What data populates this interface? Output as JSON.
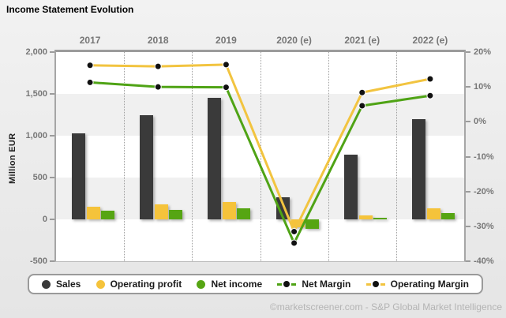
{
  "title": "Income Statement Evolution",
  "footer": "©marketscreener.com - S&P Global Market Intelligence",
  "y_axis_left": {
    "label": "Million EUR",
    "ticks": [
      "2,000",
      "1,500",
      "1,000",
      "500",
      "0",
      "-500"
    ]
  },
  "y_axis_right": {
    "ticks": [
      "20%",
      "10%",
      "0%",
      "-10%",
      "-20%",
      "-30%",
      "-40%"
    ]
  },
  "chart_data": {
    "type": "bar+line combo (dual axis)",
    "categories": [
      "2017",
      "2018",
      "2019",
      "2020 (e)",
      "2021 (e)",
      "2022 (e)"
    ],
    "left_axis": {
      "title": "Million EUR",
      "min": -500,
      "max": 2000,
      "step": 500
    },
    "right_axis": {
      "title": "margin %",
      "min": -40,
      "max": 20,
      "step": 10
    },
    "bar_series": [
      {
        "name": "Sales",
        "color": "#3a3a3a",
        "values": [
          1030,
          1245,
          1450,
          265,
          770,
          1195
        ]
      },
      {
        "name": "Operating profit",
        "color": "#f5c33b",
        "values": [
          155,
          180,
          210,
          -95,
          45,
          130
        ]
      },
      {
        "name": "Net income",
        "color": "#56a513",
        "values": [
          105,
          110,
          130,
          -110,
          20,
          75
        ]
      }
    ],
    "line_series": [
      {
        "name": "Net Margin",
        "color": "#4fa315",
        "marker_color": "#111111",
        "values_pct": [
          11.3,
          10.0,
          9.9,
          -34.8,
          4.6,
          7.5
        ]
      },
      {
        "name": "Operating Margin",
        "color": "#f2c440",
        "marker_color": "#111111",
        "values_pct": [
          16.2,
          15.9,
          16.4,
          -31.5,
          8.4,
          12.3
        ]
      }
    ],
    "layout": {
      "grid": "vertical dotted separators between years; horizontal 500-unit alternating stripes",
      "legend_position": "bottom"
    }
  },
  "legend": {
    "items": [
      {
        "label": "Sales",
        "marker": "dot",
        "color": "#3a3a3a"
      },
      {
        "label": "Operating profit",
        "marker": "dot",
        "color": "#f5c33b"
      },
      {
        "label": "Net income",
        "marker": "dot",
        "color": "#56a513"
      },
      {
        "label": "Net Margin",
        "marker": "line-dot",
        "color": "#4fa315"
      },
      {
        "label": "Operating Margin",
        "marker": "line-dot",
        "color": "#f2c440"
      }
    ]
  },
  "colors": {
    "background": "#ededed",
    "plot_background": "#ffffff",
    "stripe": "#f0f0f0",
    "axis": "#9b9b9b",
    "tick_text": "#777777",
    "footer_text": "#b4b4b4"
  }
}
